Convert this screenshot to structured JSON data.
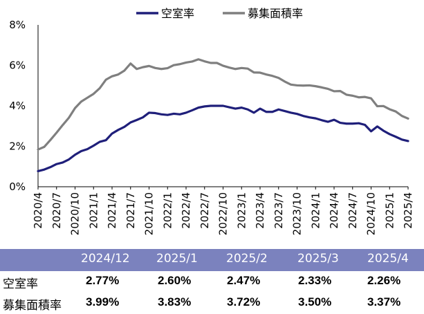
{
  "chart_data": {
    "type": "line",
    "title": "",
    "xlabel": "",
    "ylabel": "",
    "ylim": [
      0,
      8
    ],
    "yticks": [
      "0%",
      "2%",
      "4%",
      "6%",
      "8%"
    ],
    "grid": false,
    "legend_position": "top",
    "x_tick_labels": [
      "2020/4",
      "2020/7",
      "2020/10",
      "2021/1",
      "2021/4",
      "2021/7",
      "2021/10",
      "2022/1",
      "2022/4",
      "2022/7",
      "2022/10",
      "2023/1",
      "2023/4",
      "2023/7",
      "2023/10",
      "2024/1",
      "2024/4",
      "2024/7",
      "2024/10",
      "2025/1",
      "2025/4"
    ],
    "x": [
      "2020/4",
      "2020/5",
      "2020/6",
      "2020/7",
      "2020/8",
      "2020/9",
      "2020/10",
      "2020/11",
      "2020/12",
      "2021/1",
      "2021/2",
      "2021/3",
      "2021/4",
      "2021/5",
      "2021/6",
      "2021/7",
      "2021/8",
      "2021/9",
      "2021/10",
      "2021/11",
      "2021/12",
      "2022/1",
      "2022/2",
      "2022/3",
      "2022/4",
      "2022/5",
      "2022/6",
      "2022/7",
      "2022/8",
      "2022/9",
      "2022/10",
      "2022/11",
      "2022/12",
      "2023/1",
      "2023/2",
      "2023/3",
      "2023/4",
      "2023/5",
      "2023/6",
      "2023/7",
      "2023/8",
      "2023/9",
      "2023/10",
      "2023/11",
      "2023/12",
      "2024/1",
      "2024/2",
      "2024/3",
      "2024/4",
      "2024/5",
      "2024/6",
      "2024/7",
      "2024/8",
      "2024/9",
      "2024/10",
      "2024/11",
      "2024/12",
      "2025/1",
      "2025/2",
      "2025/3",
      "2025/4"
    ],
    "series": [
      {
        "name": "空室率",
        "color": "#1f1f7a",
        "values": [
          0.77,
          0.85,
          0.97,
          1.12,
          1.2,
          1.35,
          1.58,
          1.76,
          1.86,
          2.03,
          2.22,
          2.3,
          2.63,
          2.81,
          2.96,
          3.18,
          3.3,
          3.43,
          3.66,
          3.64,
          3.58,
          3.55,
          3.61,
          3.58,
          3.66,
          3.78,
          3.91,
          3.97,
          4.0,
          4.0,
          4.0,
          3.93,
          3.86,
          3.91,
          3.82,
          3.66,
          3.86,
          3.7,
          3.7,
          3.82,
          3.74,
          3.66,
          3.6,
          3.5,
          3.43,
          3.38,
          3.29,
          3.21,
          3.31,
          3.16,
          3.12,
          3.12,
          3.14,
          3.06,
          2.74,
          2.98,
          2.77,
          2.6,
          2.47,
          2.33,
          2.26
        ]
      },
      {
        "name": "募集面積率",
        "color": "#7f7f7f",
        "values": [
          1.84,
          1.97,
          2.31,
          2.67,
          3.05,
          3.41,
          3.89,
          4.21,
          4.4,
          4.59,
          4.87,
          5.29,
          5.46,
          5.55,
          5.74,
          6.09,
          5.82,
          5.91,
          5.97,
          5.87,
          5.82,
          5.86,
          6.01,
          6.06,
          6.14,
          6.19,
          6.3,
          6.2,
          6.12,
          6.12,
          5.98,
          5.89,
          5.82,
          5.87,
          5.84,
          5.65,
          5.64,
          5.55,
          5.48,
          5.38,
          5.2,
          5.05,
          5.01,
          5.0,
          5.01,
          4.97,
          4.91,
          4.84,
          4.72,
          4.73,
          4.55,
          4.5,
          4.42,
          4.44,
          4.37,
          3.98,
          3.99,
          3.83,
          3.72,
          3.5,
          3.37
        ]
      }
    ]
  },
  "table": {
    "headers": [
      "2024/12",
      "2025/1",
      "2025/2",
      "2025/3",
      "2025/4"
    ],
    "rows": [
      {
        "label": "空室率",
        "values": [
          "2.77%",
          "2.60%",
          "2.47%",
          "2.33%",
          "2.26%"
        ]
      },
      {
        "label": "募集面積率",
        "values": [
          "3.99%",
          "3.83%",
          "3.72%",
          "3.50%",
          "3.37%"
        ]
      }
    ]
  }
}
